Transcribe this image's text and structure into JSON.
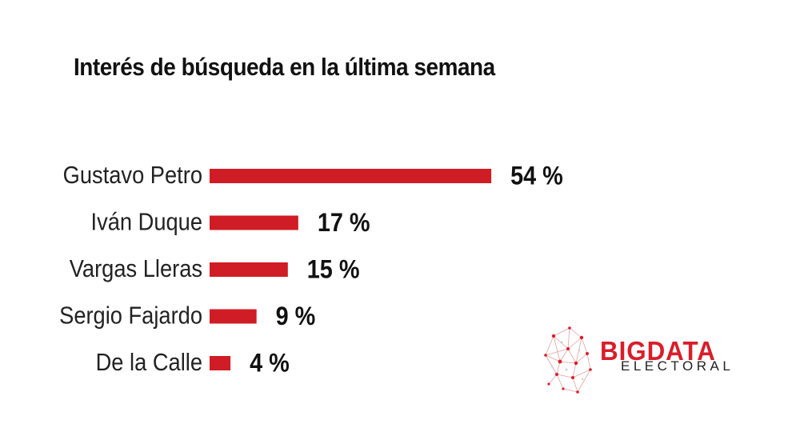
{
  "colors": {
    "bar": "#d01c24",
    "label": "#222222",
    "value": "#111111",
    "brand": "#d81e2a"
  },
  "chart_data": {
    "type": "bar",
    "orientation": "horizontal",
    "title": "Interés de búsqueda en la última semana",
    "categories": [
      "Gustavo Petro",
      "Iván Duque",
      "Vargas Lleras",
      "Sergio Fajardo",
      "De la Calle"
    ],
    "values": [
      54,
      17,
      15,
      9,
      4
    ],
    "value_labels": [
      "54 %",
      "17 %",
      "15 %",
      "9 %",
      "4 %"
    ],
    "xlabel": "",
    "ylabel": "",
    "grid": false
  },
  "brand": {
    "name": "BIGDATA",
    "subtitle": "ELECTORAL"
  }
}
